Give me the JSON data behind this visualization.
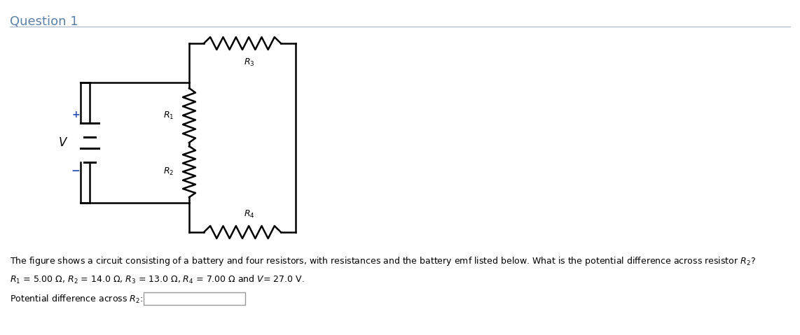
{
  "title": "Question 1",
  "title_color": "#5b7fa6",
  "title_fontsize": 13,
  "line_color": "#000000",
  "text_color": "#000000",
  "bg_color": "#ffffff",
  "description_line1": "The figure shows a circuit consisting of a battery and four resistors, with resistances and the battery emf listed below. What is the potential difference across resistor $R_2$?",
  "description_line2": "$R_1$ = 5.00 Ω, $R_2$ = 14.0 Ω, $R_3$ = 13.0 Ω, $R_4$ = 7.00 Ω and $V$= 27.0 V.",
  "answer_label": "Potential difference across $R_2$:",
  "V_label": "$V$",
  "plus_label": "+",
  "minus_label": "−",
  "R1_label": "$R_1$",
  "R2_label": "$R_2$",
  "R3_label": "$R_3$",
  "R4_label": "$R_4$",
  "title_sep_color": "#a8b8cc",
  "plus_color": "#3355bb",
  "minus_color": "#3355bb",
  "bat_line_color": "#000000",
  "input_box_color": "#999999"
}
